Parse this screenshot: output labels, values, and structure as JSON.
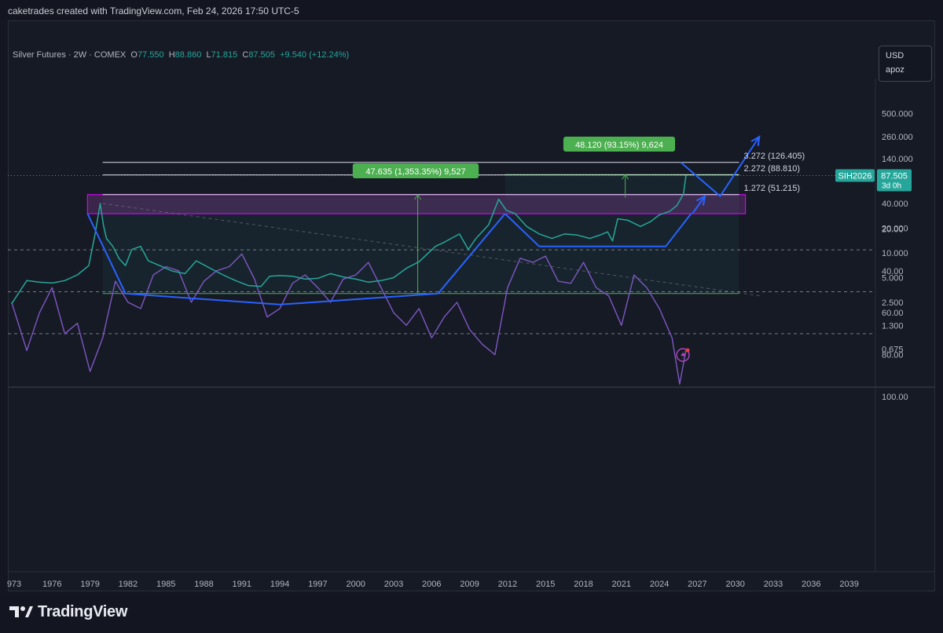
{
  "header": {
    "credit": "caketrades created with TradingView.com, Feb 24, 2026 17:50 UTC-5"
  },
  "legend": {
    "symbol": "Silver Futures · 2W · COMEX",
    "o_label": "O",
    "o": "77.550",
    "h_label": "H",
    "h": "88.860",
    "l_label": "L",
    "l": "71.815",
    "c_label": "C",
    "c": "87.505",
    "change": "+9.540 (+12.24%)"
  },
  "units": {
    "currency": "USD",
    "scale_mode": "apoz"
  },
  "colors": {
    "background": "#161a25",
    "price_line": "#26a69a",
    "rsi_line": "#7e57c2",
    "trend_drawing": "#2962ff",
    "resistance_zone": "#ab47bc",
    "measure_label": "#4caf50",
    "price_tag": "#26a69a"
  },
  "chart_data": [
    {
      "type": "line",
      "title": "Silver Futures · 2W · COMEX",
      "yscale": "log",
      "ylim": [
        0.6,
        700
      ],
      "xlim": [
        1972.8,
        2041
      ],
      "price_ticks": [
        "500.000",
        "260.000",
        "140.000",
        "70.000",
        "40.000",
        "20.000",
        "10.000",
        "5.000",
        "2.500",
        "1.300",
        "0.675"
      ],
      "x_ticks": [
        "973",
        "1976",
        "1979",
        "1982",
        "1985",
        "1988",
        "1991",
        "1994",
        "1997",
        "2000",
        "2003",
        "2006",
        "2009",
        "2012",
        "2015",
        "2018",
        "2021",
        "2024",
        "2027",
        "2030",
        "2033",
        "2036",
        "2039"
      ],
      "series": [
        {
          "x": [
            1972.8,
            1974,
            1975,
            1976,
            1977,
            1978,
            1978.9,
            1979.4,
            1979.8,
            1980.05,
            1980.3,
            1980.8,
            1981.3,
            1981.8,
            1982.3,
            1983.0,
            1983.6,
            1984.5,
            1985.5,
            1986.5,
            1987.4,
            1988.5,
            1989.5,
            1990.5,
            1991.5,
            1992.5,
            1993.2,
            1994.0,
            1995.0,
            1996.0,
            1997.0,
            1998.0,
            1999.0,
            2000.0,
            2001.0,
            2002.0,
            2003.0,
            2004.0,
            2005.0,
            2006.3,
            2007.0,
            2008.2,
            2008.9,
            2009.5,
            2010.5,
            2011.3,
            2011.9,
            2012.6,
            2013.5,
            2014.5,
            2015.5,
            2016.5,
            2017.5,
            2018.5,
            2019.3,
            2019.9,
            2020.3,
            2020.7,
            2021.5,
            2022.5,
            2023.3,
            2024.0,
            2024.8,
            2025.4,
            2025.9,
            2026.1
          ],
          "values": [
            2.4,
            4.6,
            4.4,
            4.3,
            4.6,
            5.4,
            7.0,
            17,
            40,
            22,
            15,
            12,
            8.5,
            7.0,
            11,
            12,
            8.0,
            7.0,
            6.0,
            5.6,
            8.0,
            6.5,
            5.4,
            4.6,
            4.0,
            3.9,
            5.2,
            5.3,
            5.2,
            4.8,
            4.9,
            5.6,
            5.1,
            4.8,
            4.4,
            4.6,
            5.0,
            6.5,
            7.8,
            12,
            13.5,
            17,
            11,
            15,
            22,
            45,
            33,
            30,
            21,
            17,
            15,
            17,
            16.5,
            15,
            16.5,
            18,
            14,
            26,
            25,
            21,
            24,
            29,
            32,
            38,
            52,
            87.5
          ]
        }
      ],
      "annotations": {
        "fib_levels": [
          "3.272 (126.405)",
          "2.272 (88.810)",
          "1.272 (51.215)"
        ],
        "measure_1": "47.635 (1,353.35%) 9,527",
        "measure_2": "48.120 (93.15%) 9,624",
        "last_price_tag": {
          "symbol": "SIH2026",
          "price": "87.505",
          "countdown": "3d 0h"
        }
      }
    },
    {
      "type": "line",
      "title": "RSI",
      "ylim": [
        20,
        100
      ],
      "y_ticks": [
        "100.00",
        "80.00",
        "60.00",
        "40.00",
        "20.00"
      ],
      "band": [
        30,
        70
      ],
      "series": [
        {
          "x": [
            1972.8,
            1974,
            1975,
            1976,
            1977,
            1978,
            1979,
            1980,
            1981,
            1982,
            1983,
            1984,
            1985,
            1986,
            1987,
            1988,
            1989,
            1990,
            1991,
            1992,
            1993,
            1994,
            1995,
            1996,
            1997,
            1998,
            1999,
            2000,
            2001,
            2002,
            2003,
            2004,
            2005,
            2006,
            2007,
            2008,
            2009,
            2010,
            2011,
            2012,
            2013,
            2014,
            2015,
            2016,
            2017,
            2018,
            2019,
            2020,
            2021,
            2022,
            2023,
            2024,
            2025,
            2025.6,
            2026.1
          ],
          "values": [
            55,
            78,
            60,
            48,
            70,
            65,
            88,
            72,
            45,
            55,
            58,
            42,
            38,
            40,
            55,
            45,
            40,
            38,
            32,
            44,
            62,
            58,
            46,
            42,
            48,
            55,
            44,
            42,
            36,
            48,
            60,
            66,
            58,
            72,
            62,
            55,
            68,
            75,
            80,
            48,
            34,
            36,
            33,
            45,
            46,
            36,
            48,
            52,
            66,
            42,
            48,
            58,
            72,
            94,
            78
          ]
        }
      ]
    }
  ]
}
